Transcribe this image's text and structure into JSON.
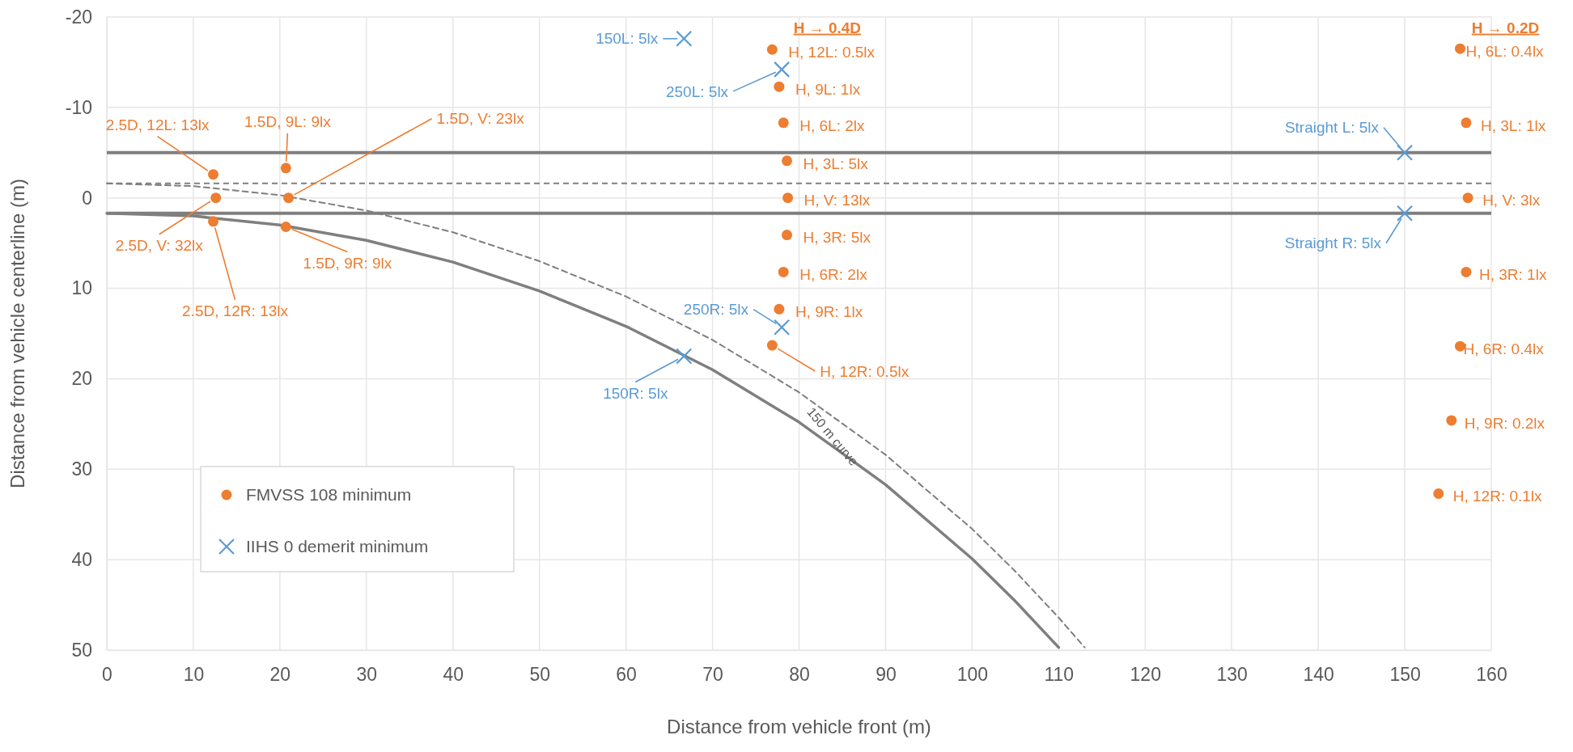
{
  "chart_data": {
    "type": "scatter",
    "xlabel": "Distance from vehicle front (m)",
    "ylabel": "Distance from vehicle centerline (m)",
    "xlim": [
      0,
      160
    ],
    "xticks": [
      0,
      10,
      20,
      30,
      40,
      50,
      60,
      70,
      80,
      90,
      100,
      110,
      120,
      130,
      140,
      150,
      160
    ],
    "ylim": [
      50,
      -20
    ],
    "yticks": [
      -20,
      -10,
      0,
      10,
      20,
      30,
      40,
      50
    ],
    "grid": true,
    "legend": "bottom left",
    "series": [
      {
        "type": "line",
        "color": "#7f7f7f",
        "line_style": "solid",
        "marker": "none",
        "x": [
          0,
          10,
          20,
          30,
          40,
          50,
          60,
          70,
          80,
          90,
          100,
          105,
          110
        ],
        "values": [
          1.7,
          2.0,
          3.0,
          4.7,
          7.1,
          10.3,
          14.2,
          19.0,
          24.8,
          31.7,
          39.9,
          44.6,
          49.7
        ]
      },
      {
        "type": "line",
        "color": "#7f7f7f",
        "line_style": "dashed",
        "marker": "none",
        "x": [
          0,
          10,
          20,
          30,
          40,
          50,
          60,
          70,
          80,
          90,
          100,
          105,
          110,
          113
        ],
        "values": [
          -1.6,
          -1.3,
          -0.3,
          1.4,
          3.8,
          7.0,
          10.9,
          15.7,
          21.5,
          28.4,
          36.6,
          41.3,
          46.4,
          49.7
        ]
      },
      {
        "name": "FMVSS 108 minimum",
        "color": "#ed7d31",
        "marker": "circle",
        "x": [
          12.3,
          12.6,
          12.3,
          20.7,
          21.0,
          20.7,
          76.9,
          77.7,
          78.2,
          78.6,
          78.7,
          78.6,
          78.2,
          77.7,
          76.9,
          156.4,
          157.1,
          157.3,
          157.1,
          156.4,
          155.4,
          153.9
        ],
        "values": [
          -2.6,
          0,
          2.6,
          -3.3,
          0,
          3.2,
          -16.4,
          -12.3,
          -8.3,
          -4.1,
          0,
          4.1,
          8.2,
          12.3,
          16.3,
          -16.5,
          -8.3,
          0,
          8.2,
          16.4,
          24.6,
          32.7
        ]
      },
      {
        "name": "IIHS 0 demerit minimum",
        "color": "#5b9bd5",
        "marker": "cross",
        "x": [
          66.7,
          78.0,
          78.0,
          66.7,
          150,
          150
        ],
        "values": [
          -17.6,
          -14.2,
          14.3,
          17.5,
          -5,
          1.7
        ]
      }
    ],
    "ref_lines": [
      {
        "axis": "y",
        "value": -5,
        "color": "#7f7f7f",
        "line_style": "solid"
      },
      {
        "axis": "y",
        "value": 1.7,
        "color": "#7f7f7f",
        "line_style": "solid"
      },
      {
        "axis": "y",
        "value": -1.6,
        "color": "#7f7f7f",
        "line_style": "dashed"
      }
    ],
    "annotations": [
      {
        "text": "2.5D, 12L: 13lx",
        "x": 12.3,
        "y": -2.6
      },
      {
        "text": "2.5D, V: 32lx",
        "x": 12.6,
        "y": 0
      },
      {
        "text": "2.5D, 12R: 13lx",
        "x": 12.3,
        "y": 2.6
      },
      {
        "text": "1.5D, 9L: 9lx",
        "x": 20.7,
        "y": -3.3
      },
      {
        "text": "1.5D, V: 23lx",
        "x": 21.0,
        "y": 0
      },
      {
        "text": "1.5D, 9R: 9lx",
        "x": 20.7,
        "y": 3.2
      },
      {
        "text": "H, 12L: 0.5lx",
        "x": 76.9,
        "y": -16.4
      },
      {
        "text": "H, 9L: 1lx",
        "x": 77.7,
        "y": -12.3
      },
      {
        "text": "H, 6L: 2lx",
        "x": 78.2,
        "y": -8.3
      },
      {
        "text": "H, 3L: 5lx",
        "x": 78.6,
        "y": -4.1
      },
      {
        "text": "H, V: 13lx",
        "x": 78.7,
        "y": 0
      },
      {
        "text": "H, 3R: 5lx",
        "x": 78.6,
        "y": 4.1
      },
      {
        "text": "H, 6R: 2lx",
        "x": 78.2,
        "y": 8.2
      },
      {
        "text": "H, 9R: 1lx",
        "x": 77.7,
        "y": 12.3
      },
      {
        "text": "H, 12R: 0.5lx",
        "x": 76.9,
        "y": 16.3
      },
      {
        "text": "H, 6L: 0.4lx",
        "x": 156.4,
        "y": -16.5
      },
      {
        "text": "H, 3L: 1lx",
        "x": 157.1,
        "y": -8.3
      },
      {
        "text": "H, V: 3lx",
        "x": 157.3,
        "y": 0
      },
      {
        "text": "H, 3R: 1lx",
        "x": 157.1,
        "y": 8.2
      },
      {
        "text": "H, 6R: 0.4lx",
        "x": 156.4,
        "y": 16.4
      },
      {
        "text": "H, 9R: 0.2lx",
        "x": 155.4,
        "y": 24.6
      },
      {
        "text": "H, 12R: 0.1lx",
        "x": 153.9,
        "y": 32.7
      },
      {
        "text": "150L: 5lx",
        "x": 66.7,
        "y": -17.6
      },
      {
        "text": "250L: 5lx",
        "x": 78.0,
        "y": -14.2
      },
      {
        "text": "250R: 5lx",
        "x": 78.0,
        "y": 14.3
      },
      {
        "text": "150R: 5lx",
        "x": 66.7,
        "y": 17.5
      },
      {
        "text": "Straight L: 5lx",
        "x": 150,
        "y": -5
      },
      {
        "text": "Straight R: 5lx",
        "x": 150,
        "y": 1.7
      },
      "H → 0.4D",
      "H → 0.2D",
      "150 m curve"
    ]
  }
}
